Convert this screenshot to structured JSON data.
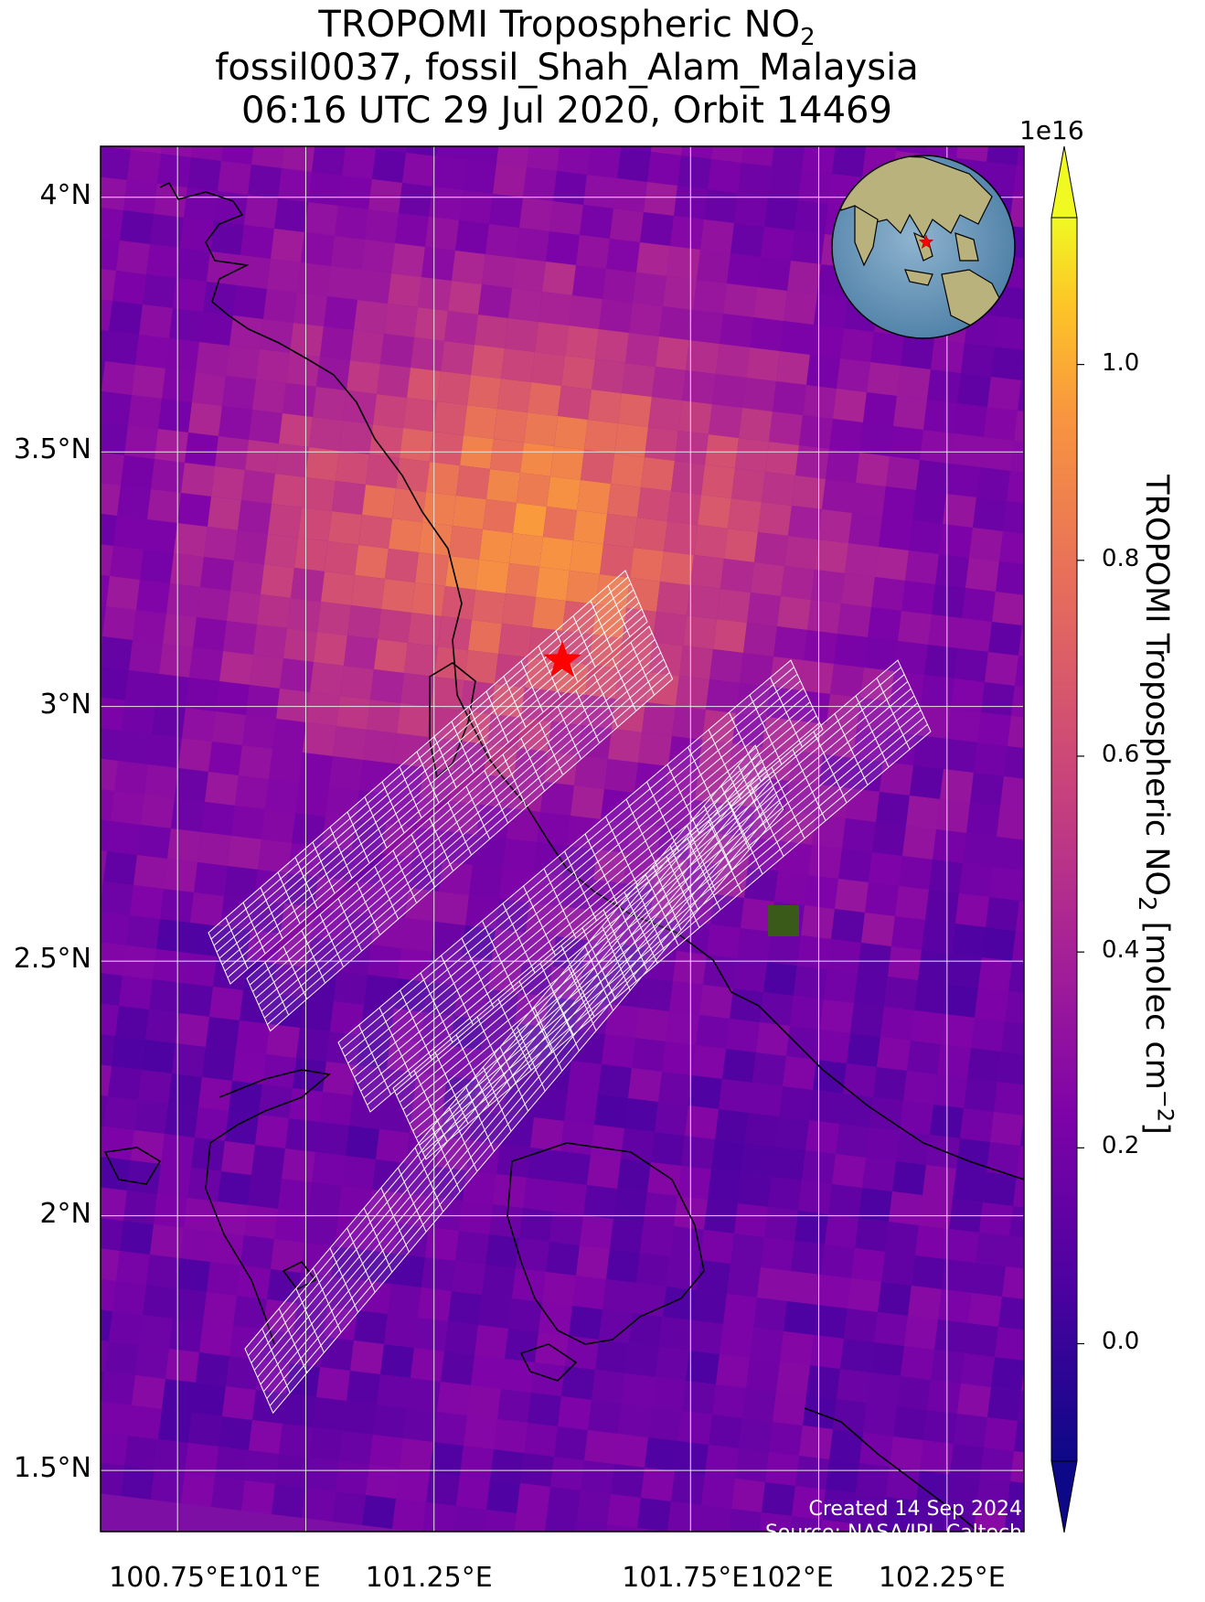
{
  "title": {
    "line1_prefix": "TROPOMI Tropospheric NO",
    "line1_sub": "2",
    "line2": "fossil0037, fossil_Shah_Alam_Malaysia",
    "line3": "06:16 UTC 29 Jul 2020, Orbit 14469"
  },
  "map": {
    "lon_range": [
      100.6,
      102.4
    ],
    "lat_range": [
      1.38,
      4.1
    ],
    "lat_ticks": [
      {
        "value": 4.0,
        "label": "4°N"
      },
      {
        "value": 3.5,
        "label": "3.5°N"
      },
      {
        "value": 3.0,
        "label": "3°N"
      },
      {
        "value": 2.5,
        "label": "2.5°N"
      },
      {
        "value": 2.0,
        "label": "2°N"
      },
      {
        "value": 1.5,
        "label": "1.5°N"
      }
    ],
    "lon_ticks": [
      {
        "value": 100.75,
        "label": "100.75°E"
      },
      {
        "value": 101.0,
        "label": "101°E"
      },
      {
        "value": 101.25,
        "label": "101.25°E"
      },
      {
        "value": 101.75,
        "label": "101.75°E"
      },
      {
        "value": 102.0,
        "label": "102°E"
      },
      {
        "value": 102.25,
        "label": "102.25°E"
      }
    ],
    "gridlines": true,
    "colormap": "plasma",
    "marker": {
      "type": "red-star",
      "lon": 101.5,
      "lat": 3.09
    },
    "inset_globe": {
      "type": "orthographic-globe",
      "marker": "red-star"
    }
  },
  "colorbar": {
    "exponent_label": "1e16",
    "range": [
      -0.12,
      1.15
    ],
    "ticks": [
      {
        "value": 0.0,
        "label": "0.0"
      },
      {
        "value": 0.2,
        "label": "0.2"
      },
      {
        "value": 0.4,
        "label": "0.4"
      },
      {
        "value": 0.6,
        "label": "0.6"
      },
      {
        "value": 0.8,
        "label": "0.8"
      },
      {
        "value": 1.0,
        "label": "1.0"
      }
    ],
    "label_prefix": "TROPOMI Tropospheric NO",
    "label_sub": "2",
    "label_mid": " [molec cm",
    "label_sup": "−2",
    "label_suffix": "]",
    "extend": "both"
  },
  "credits": {
    "created": "Created 14 Sep 2024",
    "source": "Source: NASA/JPL-Caltech"
  }
}
